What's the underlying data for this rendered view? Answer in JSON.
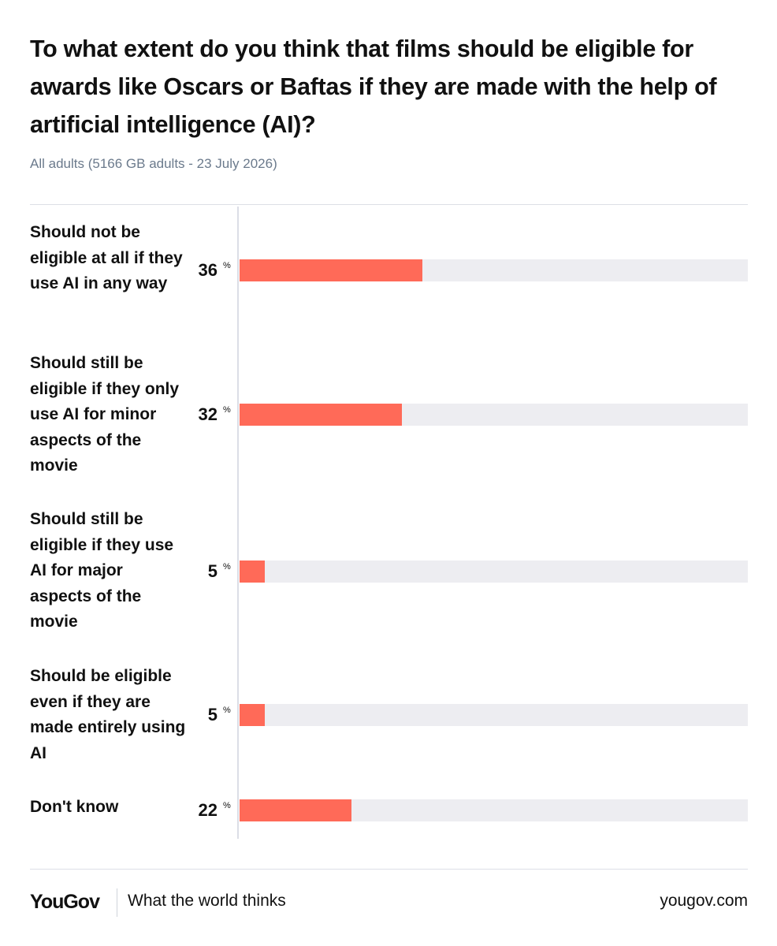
{
  "title": "To what extent do you think that films should be eligible for awards like Oscars or Baftas if they are made with the help of artificial intelligence (AI)?",
  "subtitle": "All adults (5166 GB adults - 23 July 2026)",
  "footer": {
    "logo": "YouGov",
    "tagline": "What the world thinks",
    "url": "yougov.com"
  },
  "chart_data": {
    "type": "bar",
    "orientation": "horizontal",
    "categories": [
      "Should not be eligible at all if they use AI in any way",
      "Should still be eligible if they only use AI for minor aspects of the movie",
      "Should still be eligible if they use AI for major aspects of the movie",
      "Should be eligible even if they are made entirely using AI",
      "Don't know"
    ],
    "values": [
      36,
      32,
      5,
      5,
      22
    ],
    "unit": "%",
    "xlim": [
      0,
      100
    ],
    "bar_color": "#ff6a58",
    "track_color": "#ededf1",
    "grid": false,
    "legend": "none"
  }
}
